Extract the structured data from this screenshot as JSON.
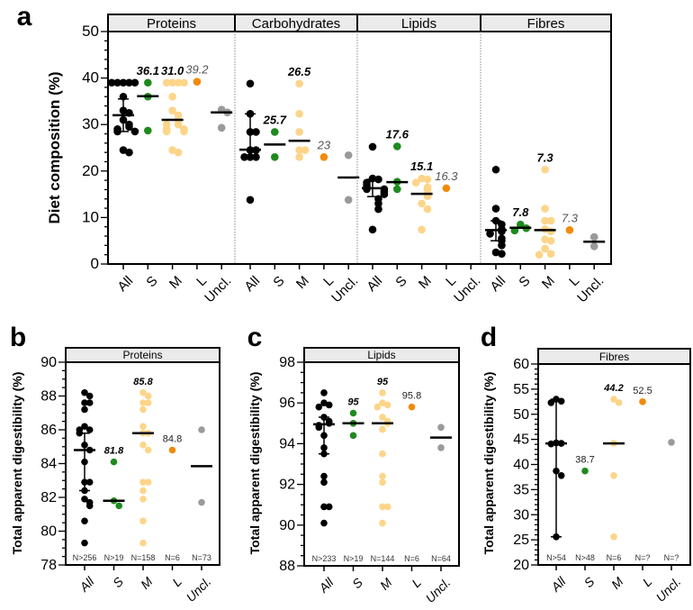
{
  "colors": {
    "All": "#000000",
    "S": "#1f8a1f",
    "M": "#fcd589",
    "L": "#f28a0c",
    "Uncl.": "#9a9a9a"
  },
  "chart_data": [
    {
      "panel": "a",
      "type": "scatter",
      "ylabel": "Diet composition (%)",
      "ylim": [
        0,
        50
      ],
      "yticks": [
        0,
        10,
        20,
        30,
        40,
        50
      ],
      "categories": [
        "All",
        "S",
        "M",
        "L",
        "Uncl."
      ],
      "facets": [
        {
          "title": "Proteins",
          "groups": [
            {
              "cat": "All",
              "points": [
                39,
                39,
                39,
                39,
                39,
                36,
                33,
                32.5,
                31,
                30,
                29.5,
                29,
                28.5,
                28.5,
                24.5,
                24
              ],
              "median": 32,
              "range": [
                28.5,
                35.5
              ]
            },
            {
              "cat": "S",
              "points": [
                39,
                36,
                28.7
              ],
              "median": 36.1,
              "label": "36.1",
              "label_bold": true
            },
            {
              "cat": "M",
              "points": [
                39,
                39,
                39,
                39,
                36,
                33,
                32,
                31,
                30,
                30,
                29,
                29,
                28.5,
                28.5,
                24.5,
                24
              ],
              "median": 31.0,
              "label": "31.0",
              "label_bold": true
            },
            {
              "cat": "L",
              "points": [
                39.2
              ],
              "label": "39.2",
              "label_bold": false
            },
            {
              "cat": "Uncl.",
              "points": [
                33.2,
                32.6,
                29.3
              ],
              "median": 32.6
            }
          ]
        },
        {
          "title": "Carbohydrates",
          "groups": [
            {
              "cat": "All",
              "points": [
                38.8,
                32.3,
                28.4,
                28.4,
                24.5,
                24.5,
                23,
                23,
                23,
                13.8
              ],
              "median": 24.6,
              "range": [
                23,
                32.3
              ]
            },
            {
              "cat": "S",
              "points": [
                28.4,
                23
              ],
              "median": 25.7,
              "label": "25.7",
              "label_bold": true
            },
            {
              "cat": "M",
              "points": [
                38.8,
                32.3,
                28.4,
                24.5,
                24.5,
                23
              ],
              "median": 26.5,
              "label": "26.5",
              "label_bold": true
            },
            {
              "cat": "L",
              "points": [
                23
              ],
              "label": "23",
              "label_bold": false
            },
            {
              "cat": "Uncl.",
              "points": [
                23.4,
                13.8
              ],
              "median": 18.6
            }
          ]
        },
        {
          "title": "Lipids",
          "groups": [
            {
              "cat": "All",
              "points": [
                25.2,
                18.4,
                18.2,
                17.5,
                17,
                16.5,
                16.1,
                16.1,
                15.5,
                15,
                14,
                13,
                11.8,
                7.4
              ],
              "median": 16.3,
              "range": [
                14.5,
                18.2
              ]
            },
            {
              "cat": "S",
              "points": [
                25.3,
                17.7,
                16.1
              ],
              "median": 17.6,
              "label": "17.6",
              "label_bold": true
            },
            {
              "cat": "M",
              "points": [
                18.4,
                18.2,
                17.5,
                16.5,
                16,
                15.1,
                14.6,
                13,
                11.8,
                7.4
              ],
              "median": 15.1,
              "label": "15.1",
              "label_bold": true
            },
            {
              "cat": "L",
              "points": [
                16.3
              ],
              "label": "16.3",
              "label_bold": false
            }
          ]
        },
        {
          "title": "Fibres",
          "groups": [
            {
              "cat": "All",
              "points": [
                20.3,
                11.9,
                9.3,
                8.5,
                7.5,
                7,
                6.5,
                5.5,
                5,
                4,
                2.5,
                2.2
              ],
              "median": 7.3,
              "range": [
                5,
                9.3
              ]
            },
            {
              "cat": "S",
              "points": [
                8.5,
                7.7,
                7.2
              ],
              "median": 7.8,
              "label": "7.8",
              "label_bold": true
            },
            {
              "cat": "M",
              "points": [
                20.3,
                11.9,
                9.3,
                9.3,
                7.5,
                7,
                5.3,
                5,
                3.3,
                2.2,
                2
              ],
              "median": 7.3,
              "label": "7.3",
              "label_bold": true
            },
            {
              "cat": "L",
              "points": [
                7.3
              ],
              "label": "7.3",
              "label_bold": false
            },
            {
              "cat": "Uncl.",
              "points": [
                5.8,
                3.8
              ],
              "median": 4.8
            }
          ]
        }
      ]
    },
    {
      "panel": "b",
      "type": "scatter",
      "title": "Proteins",
      "ylabel": "Total apparent digestibility (%)",
      "ylim": [
        78,
        90
      ],
      "yticks": [
        78,
        80,
        82,
        84,
        86,
        88,
        90
      ],
      "categories": [
        "All",
        "S",
        "M",
        "L",
        "Uncl."
      ],
      "groups": [
        {
          "cat": "All",
          "points": [
            88.2,
            88,
            87.6,
            87.6,
            87.2,
            86.2,
            86,
            86,
            85.8,
            85.1,
            84.8,
            84.1,
            82.9,
            82.9,
            82.4,
            81.9,
            81.7,
            81.5,
            80.6,
            79.3
          ],
          "median": 84.8,
          "range": [
            82.4,
            85.8
          ],
          "n": "N>256"
        },
        {
          "cat": "S",
          "points": [
            84.1,
            81.8,
            81.5
          ],
          "median": 81.8,
          "label": "81.8",
          "label_bold": true,
          "n": "N>19"
        },
        {
          "cat": "M",
          "points": [
            88.2,
            88,
            87.6,
            87.6,
            87.2,
            86.2,
            85.8,
            85.8,
            85.1,
            84.8,
            82.9,
            82.9,
            82.4,
            81.9,
            80.6,
            79.3
          ],
          "median": 85.8,
          "label": "85.8",
          "label_bold": true,
          "n": "N=158"
        },
        {
          "cat": "L",
          "points": [
            84.8
          ],
          "label": "84.8",
          "label_bold": false,
          "n": "N=6"
        },
        {
          "cat": "Uncl.",
          "points": [
            86,
            81.7
          ],
          "median": 83.85,
          "n": "N=73"
        }
      ]
    },
    {
      "panel": "c",
      "type": "scatter",
      "title": "Lipids",
      "ylabel": "Total apparent digestibility (%)",
      "ylim": [
        88,
        98
      ],
      "yticks": [
        88,
        90,
        92,
        94,
        96,
        98
      ],
      "categories": [
        "All",
        "S",
        "M",
        "L",
        "Uncl."
      ],
      "groups": [
        {
          "cat": "All",
          "points": [
            96.5,
            96,
            95.9,
            95.8,
            95.3,
            95.1,
            95,
            94.9,
            94.8,
            94.4,
            93.8,
            93.5,
            92.4,
            92.1,
            90.9,
            90.9,
            90.1
          ],
          "median": 94.95,
          "range": [
            93.5,
            95.3
          ],
          "n": "N>233"
        },
        {
          "cat": "S",
          "points": [
            95.5,
            95,
            94.4
          ],
          "median": 95,
          "label": "95",
          "label_bold": true,
          "n": "N>19"
        },
        {
          "cat": "M",
          "points": [
            96.5,
            96,
            95.9,
            95.8,
            95.3,
            95.1,
            95,
            94.7,
            93.5,
            92.4,
            92.1,
            90.9,
            90.9,
            90.1
          ],
          "median": 95,
          "label": "95",
          "label_bold": true,
          "n": "N=144"
        },
        {
          "cat": "L",
          "points": [
            95.8
          ],
          "label": "95.8",
          "label_bold": false,
          "n": "N=6"
        },
        {
          "cat": "Uncl.",
          "points": [
            94.8,
            93.8
          ],
          "median": 94.3,
          "n": "N=64"
        }
      ]
    },
    {
      "panel": "d",
      "type": "scatter",
      "title": "Fibres",
      "ylabel": "Total apparent digestibility (%)",
      "ylim": [
        20,
        60
      ],
      "yticks": [
        20,
        25,
        30,
        35,
        40,
        45,
        50,
        55,
        60
      ],
      "categories": [
        "All",
        "S",
        "M",
        "L",
        "Uncl."
      ],
      "groups": [
        {
          "cat": "All",
          "points": [
            53,
            52.6,
            52.3,
            44.3,
            44.2,
            44.1,
            38.7,
            37.8,
            25.6
          ],
          "median": 44.2,
          "range": [
            25.6,
            53
          ],
          "n": "N>54"
        },
        {
          "cat": "S",
          "points": [
            38.7
          ],
          "label": "38.7",
          "label_bold": false,
          "n": "N>48"
        },
        {
          "cat": "M",
          "points": [
            53,
            52.3,
            44.2,
            37.8,
            25.6
          ],
          "median": 44.2,
          "label": "44.2",
          "label_bold": true,
          "n": "N=6"
        },
        {
          "cat": "L",
          "points": [
            52.5
          ],
          "label": "52.5",
          "label_bold": false,
          "n": "N=?"
        },
        {
          "cat": "Uncl.",
          "points": [
            44.4
          ],
          "n": "N=?"
        }
      ]
    }
  ]
}
